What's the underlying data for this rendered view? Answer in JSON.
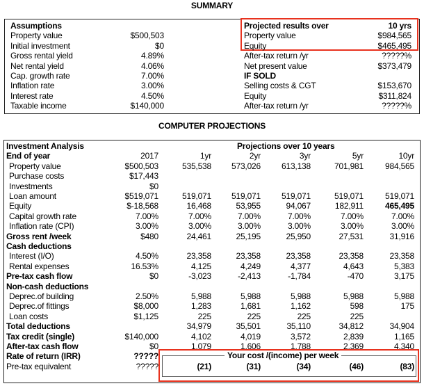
{
  "summary": {
    "title": "SUMMARY",
    "assumptions": {
      "heading": "Assumptions",
      "rows": [
        {
          "label": "Property value",
          "value": "$500,503"
        },
        {
          "label": "Initial investment",
          "value": "$0"
        },
        {
          "label": "Gross rental yield",
          "value": "4.89%"
        },
        {
          "label": "Net rental yield",
          "value": "4.06%"
        },
        {
          "label": "Cap. growth rate",
          "value": "7.00%"
        },
        {
          "label": "Inflation rate",
          "value": "3.00%"
        },
        {
          "label": "Interest rate",
          "value": "4.50%"
        },
        {
          "label": "Taxable income",
          "value": "$140,000"
        }
      ]
    },
    "results": {
      "heading": "Projected results over",
      "heading_value": "10 yrs",
      "rows": [
        {
          "label": "Property value",
          "value": "$984,565",
          "bold": false
        },
        {
          "label": "Equity",
          "value": "$465,495",
          "bold": false
        },
        {
          "label": "After-tax return /yr",
          "value": "?????%",
          "bold": false
        },
        {
          "label": "Net present value",
          "value": "$373,479",
          "bold": false
        },
        {
          "label": "IF SOLD",
          "value": "",
          "bold": true
        },
        {
          "label": "Selling costs & CGT",
          "value": "$153,670",
          "bold": false
        },
        {
          "label": "Equity",
          "value": "$311,824",
          "bold": false
        },
        {
          "label": "After-tax return /yr",
          "value": "?????%",
          "bold": false
        }
      ]
    },
    "highlight_color": "#e8321e"
  },
  "projections": {
    "title": "COMPUTER PROJECTIONS",
    "heading": "Investment Analysis",
    "group_heading": "Projections over 10 years",
    "rows": [
      {
        "label": "End of year",
        "bold": true,
        "indent": false,
        "values": [
          "2017",
          "1yr",
          "2yr",
          "3yr",
          "5yr",
          "10yr"
        ]
      },
      {
        "label": "Property value",
        "bold": false,
        "indent": true,
        "values": [
          "$500,503",
          "535,538",
          "573,026",
          "613,138",
          "701,981",
          "984,565"
        ]
      },
      {
        "label": "Purchase costs",
        "bold": false,
        "indent": true,
        "values": [
          "$17,443",
          "",
          "",
          "",
          "",
          ""
        ]
      },
      {
        "label": "Investments",
        "bold": false,
        "indent": true,
        "values": [
          "$0",
          "",
          "",
          "",
          "",
          ""
        ]
      },
      {
        "label": "Loan amount",
        "bold": false,
        "indent": true,
        "values": [
          "$519,071",
          "519,071",
          "519,071",
          "519,071",
          "519,071",
          "519,071"
        ]
      },
      {
        "label": "Equity",
        "bold": false,
        "indent": true,
        "values": [
          "$-18,568",
          "16,468",
          "53,955",
          "94,067",
          "182,911",
          "465,495"
        ],
        "bold_last": true
      },
      {
        "label": "Capital growth rate",
        "bold": false,
        "indent": true,
        "values": [
          "7.00%",
          "7.00%",
          "7.00%",
          "7.00%",
          "7.00%",
          "7.00%"
        ]
      },
      {
        "label": "Inflation rate (CPI)",
        "bold": false,
        "indent": true,
        "values": [
          "3.00%",
          "3.00%",
          "3.00%",
          "3.00%",
          "3.00%",
          "3.00%"
        ]
      },
      {
        "label": "Gross rent /week",
        "bold": true,
        "indent": false,
        "values": [
          "$480",
          "24,461",
          "25,195",
          "25,950",
          "27,531",
          "31,916"
        ]
      },
      {
        "label": "Cash deductions",
        "bold": true,
        "indent": false,
        "values": [
          "",
          "",
          "",
          "",
          "",
          ""
        ]
      },
      {
        "label": "Interest (I/O)",
        "bold": false,
        "indent": true,
        "values": [
          "4.50%",
          "23,358",
          "23,358",
          "23,358",
          "23,358",
          "23,358"
        ]
      },
      {
        "label": "Rental expenses",
        "bold": false,
        "indent": true,
        "values": [
          "16.53%",
          "4,125",
          "4,249",
          "4,377",
          "4,643",
          "5,383"
        ]
      },
      {
        "label": "Pre-tax cash flow",
        "bold": true,
        "indent": false,
        "values": [
          "$0",
          "-3,023",
          "-2,413",
          "-1,784",
          "-470",
          "3,175"
        ]
      },
      {
        "label": "Non-cash deductions",
        "bold": true,
        "indent": false,
        "values": [
          "",
          "",
          "",
          "",
          "",
          ""
        ]
      },
      {
        "label": "Deprec.of building",
        "bold": false,
        "indent": true,
        "values": [
          "2.50%",
          "5,988",
          "5,988",
          "5,988",
          "5,988",
          "5,988"
        ]
      },
      {
        "label": "Deprec.of fittings",
        "bold": false,
        "indent": true,
        "values": [
          "$8,000",
          "1,283",
          "1,681",
          "1,162",
          "598",
          "175"
        ]
      },
      {
        "label": "Loan costs",
        "bold": false,
        "indent": true,
        "values": [
          "$1,125",
          "225",
          "225",
          "225",
          "225",
          ""
        ]
      },
      {
        "label": "Total deductions",
        "bold": true,
        "indent": false,
        "values": [
          "",
          "34,979",
          "35,501",
          "35,110",
          "34,812",
          "34,904"
        ]
      },
      {
        "label": "Tax credit (single)",
        "bold": true,
        "indent": false,
        "values": [
          "$140,000",
          "4,102",
          "4,019",
          "3,572",
          "2,839",
          "1,165"
        ]
      },
      {
        "label": "After-tax cash flow",
        "bold": true,
        "indent": false,
        "values": [
          "$0",
          "1,079",
          "1,606",
          "1,788",
          "2,369",
          "4,340"
        ]
      },
      {
        "label": "Rate of return (IRR)",
        "bold": true,
        "indent": false,
        "values": [
          "?????",
          "",
          "",
          "",
          "",
          ""
        ],
        "bold_first": true
      },
      {
        "label": "Pre-tax equivalent",
        "bold": false,
        "indent": false,
        "values": [
          "?????",
          "",
          "",
          "",
          "",
          ""
        ]
      }
    ],
    "weekly_cost": {
      "label": "Your cost /(income) per week",
      "values": [
        "(21)",
        "(31)",
        "(34)",
        "(46)",
        "(83)"
      ]
    }
  }
}
